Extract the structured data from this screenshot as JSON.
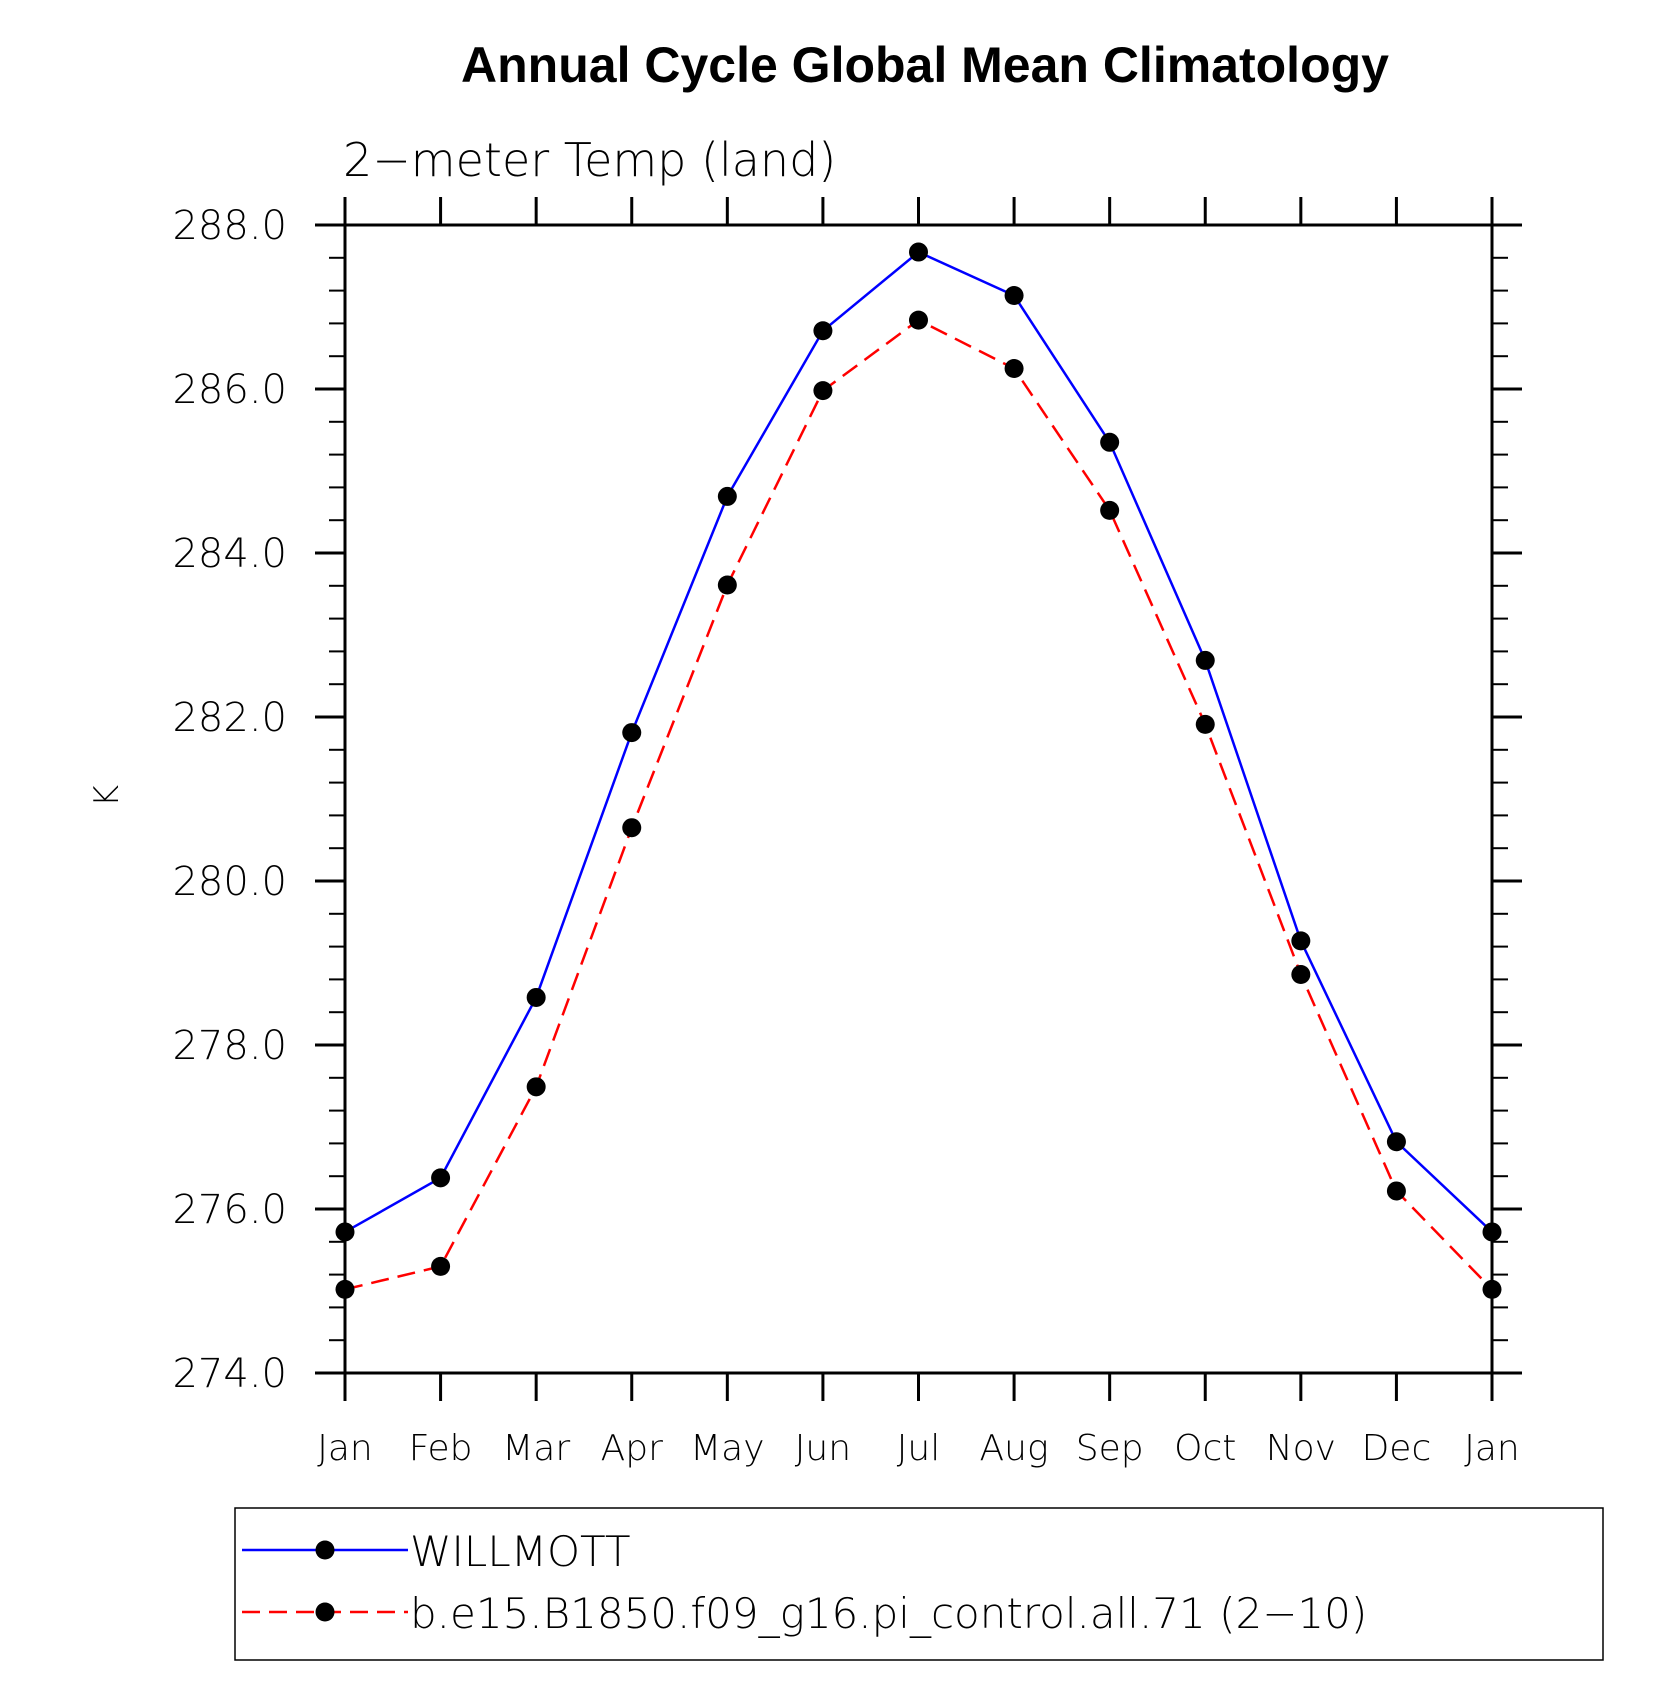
{
  "chart_data": {
    "type": "line",
    "title": "Annual Cycle Global Mean Climatology",
    "subtitle": "2−meter Temp (land)",
    "ylabel": "K",
    "xlabel": "",
    "categories": [
      "Jan",
      "Feb",
      "Mar",
      "Apr",
      "May",
      "Jun",
      "Jul",
      "Aug",
      "Sep",
      "Oct",
      "Nov",
      "Dec",
      "Jan"
    ],
    "ylim": [
      274.0,
      288.0
    ],
    "yticks": [
      "274.0",
      "276.0",
      "278.0",
      "280.0",
      "282.0",
      "284.0",
      "286.0",
      "288.0"
    ],
    "series": [
      {
        "name": "WILLMOTT",
        "color": "#0000ff",
        "dash": "solid",
        "marker": "circle",
        "values": [
          275.72,
          276.38,
          278.58,
          281.81,
          284.69,
          286.71,
          287.67,
          287.14,
          285.35,
          282.69,
          279.27,
          276.82,
          275.72
        ]
      },
      {
        "name": "b.e15.B1850.f09_g16.pi_control.all.71 (2−10)",
        "color": "#ff0000",
        "dash": "dashed",
        "marker": "circle",
        "values": [
          275.02,
          275.3,
          277.49,
          280.65,
          283.61,
          285.98,
          286.84,
          286.25,
          284.52,
          281.91,
          278.86,
          276.22,
          275.02
        ]
      }
    ],
    "grid": false,
    "legend_position": "bottom"
  }
}
